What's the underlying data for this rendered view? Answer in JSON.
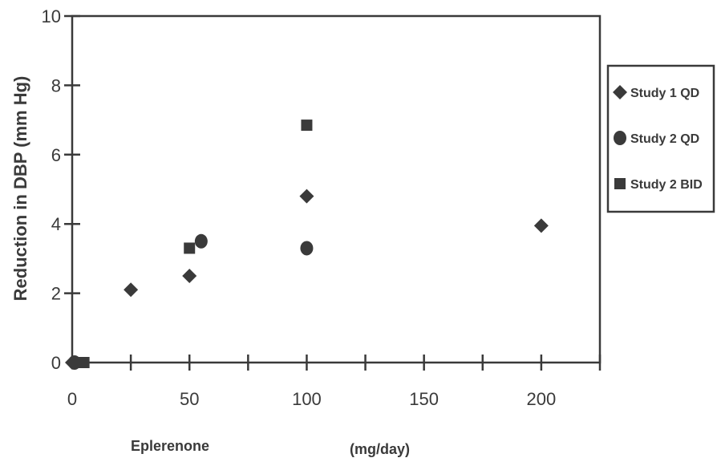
{
  "chart_data": {
    "type": "scatter",
    "title": "",
    "xlabel": "Eplerenone",
    "xlabel_unit": "(mg/day)",
    "ylabel": "Reduction in DBP (mm Hg)",
    "xlim": [
      0,
      225
    ],
    "ylim": [
      0,
      10
    ],
    "x_ticks": [
      0,
      50,
      100,
      150,
      200
    ],
    "y_ticks": [
      0,
      2,
      4,
      6,
      8,
      10
    ],
    "grid": false,
    "legend_position": "right",
    "marker_color": "#3a3a3a",
    "series": [
      {
        "name": "Study 1 QD",
        "marker": "diamond",
        "points": [
          {
            "x": 0,
            "y": 0
          },
          {
            "x": 25,
            "y": 2.1
          },
          {
            "x": 50,
            "y": 2.5
          },
          {
            "x": 100,
            "y": 4.8
          },
          {
            "x": 200,
            "y": 3.95
          }
        ]
      },
      {
        "name": "Study 2 QD",
        "marker": "circle",
        "points": [
          {
            "x": 1,
            "y": 0
          },
          {
            "x": 55,
            "y": 3.5
          },
          {
            "x": 100,
            "y": 3.3
          }
        ]
      },
      {
        "name": "Study 2 BID",
        "marker": "square",
        "points": [
          {
            "x": 5,
            "y": 0
          },
          {
            "x": 50,
            "y": 3.3
          },
          {
            "x": 100,
            "y": 6.85
          }
        ]
      }
    ]
  }
}
